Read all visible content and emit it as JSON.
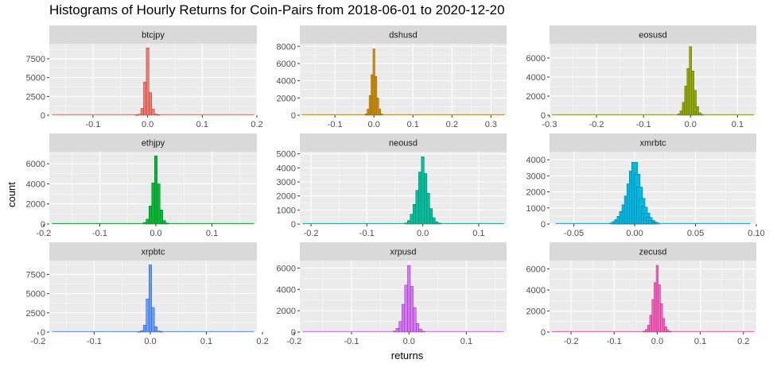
{
  "chart_data": {
    "type": "histogram",
    "title": "Histograms of Hourly Returns for Coin-Pairs from 2018-06-01 to 2020-12-20",
    "xlabel": "returns",
    "ylabel": "count",
    "grid": true,
    "facets": [
      {
        "name": "btcjpy",
        "color": "#F8766D",
        "xlim": [
          -0.18,
          0.2
        ],
        "xticks": [
          -0.1,
          0.0,
          0.1,
          0.2
        ],
        "xtick_labels": [
          "-0.1",
          "0.0",
          "0.1",
          "0.2"
        ],
        "ylim": [
          0,
          9500
        ],
        "yticks": [
          0,
          2500,
          5000,
          7500
        ],
        "ytick_labels": [
          "0",
          "2500",
          "5000",
          "7500"
        ],
        "bins": [
          [
            -0.02,
            20
          ],
          [
            -0.015,
            120
          ],
          [
            -0.01,
            900
          ],
          [
            -0.005,
            4400
          ],
          [
            0.0,
            8950
          ],
          [
            0.005,
            3000
          ],
          [
            0.01,
            800
          ],
          [
            0.015,
            150
          ],
          [
            0.02,
            40
          ]
        ]
      },
      {
        "name": "dshusd",
        "color": "#D39200",
        "xlim": [
          -0.19,
          0.34
        ],
        "xticks": [
          -0.1,
          0.0,
          0.1,
          0.2,
          0.3
        ],
        "xtick_labels": [
          "-0.1",
          "0.0",
          "0.1",
          "0.2",
          "0.3"
        ],
        "ylim": [
          0,
          8300
        ],
        "yticks": [
          0,
          2000,
          4000,
          6000,
          8000
        ],
        "ytick_labels": [
          "0",
          "2000",
          "4000",
          "6000",
          "8000"
        ],
        "bins": [
          [
            -0.02,
            150
          ],
          [
            -0.015,
            700
          ],
          [
            -0.01,
            2300
          ],
          [
            -0.005,
            4700
          ],
          [
            0.0,
            7700
          ],
          [
            0.005,
            4500
          ],
          [
            0.01,
            2000
          ],
          [
            0.015,
            700
          ],
          [
            0.02,
            150
          ]
        ]
      },
      {
        "name": "eosusd",
        "color": "#93AA00",
        "xlim": [
          -0.3,
          0.14
        ],
        "xticks": [
          -0.3,
          -0.2,
          -0.1,
          0.0,
          0.1
        ],
        "xtick_labels": [
          "-0.3",
          "-0.2",
          "-0.1",
          "0.0",
          "0.1"
        ],
        "ylim": [
          0,
          7500
        ],
        "yticks": [
          0,
          2000,
          4000,
          6000
        ],
        "ytick_labels": [
          "0",
          "2000",
          "4000",
          "6000"
        ],
        "bins": [
          [
            -0.025,
            120
          ],
          [
            -0.02,
            450
          ],
          [
            -0.015,
            1350
          ],
          [
            -0.01,
            3050
          ],
          [
            -0.005,
            4900
          ],
          [
            0.0,
            7200
          ],
          [
            0.005,
            4650
          ],
          [
            0.01,
            2600
          ],
          [
            0.015,
            900
          ],
          [
            0.02,
            250
          ],
          [
            0.025,
            80
          ]
        ]
      },
      {
        "name": "ethjpy",
        "color": "#00BA38",
        "xlim": [
          -0.19,
          0.18
        ],
        "xticks": [
          -0.2,
          -0.1,
          0.0,
          0.1
        ],
        "xtick_labels": [
          "-0.2",
          "-0.1",
          "0.0",
          "0.1"
        ],
        "ylim": [
          0,
          7200
        ],
        "yticks": [
          0,
          2000,
          4000,
          6000
        ],
        "ytick_labels": [
          "0",
          "2000",
          "4000",
          "6000"
        ],
        "bins": [
          [
            -0.02,
            150
          ],
          [
            -0.015,
            500
          ],
          [
            -0.01,
            1800
          ],
          [
            -0.005,
            4100
          ],
          [
            0.0,
            6800
          ],
          [
            0.005,
            4000
          ],
          [
            0.01,
            1400
          ],
          [
            0.015,
            350
          ],
          [
            0.02,
            100
          ]
        ]
      },
      {
        "name": "neousd",
        "color": "#00C19F",
        "xlim": [
          -0.22,
          0.15
        ],
        "xticks": [
          -0.2,
          -0.1,
          0.0,
          0.1
        ],
        "xtick_labels": [
          "-0.2",
          "-0.1",
          "0.0",
          "0.1"
        ],
        "ylim": [
          0,
          5150
        ],
        "yticks": [
          0,
          1000,
          2000,
          3000,
          4000,
          5000
        ],
        "ytick_labels": [
          "0",
          "1000",
          "2000",
          "3000",
          "4000",
          "5000"
        ],
        "bins": [
          [
            -0.03,
            80
          ],
          [
            -0.025,
            250
          ],
          [
            -0.02,
            700
          ],
          [
            -0.015,
            1400
          ],
          [
            -0.01,
            2400
          ],
          [
            -0.005,
            3700
          ],
          [
            0.0,
            4800
          ],
          [
            0.005,
            3600
          ],
          [
            0.01,
            2200
          ],
          [
            0.015,
            1100
          ],
          [
            0.02,
            450
          ],
          [
            0.025,
            150
          ],
          [
            0.03,
            60
          ]
        ]
      },
      {
        "name": "xmrbtc",
        "color": "#00B9E3",
        "xlim": [
          -0.07,
          0.1
        ],
        "xticks": [
          -0.05,
          0.0,
          0.05,
          0.1
        ],
        "xtick_labels": [
          "-0.05",
          "0.00",
          "0.05",
          "0.10"
        ],
        "ylim": [
          0,
          4500
        ],
        "yticks": [
          0,
          1000,
          2000,
          3000,
          4000
        ],
        "ytick_labels": [
          "0",
          "1000",
          "2000",
          "3000",
          "4000"
        ],
        "bins": [
          [
            -0.018,
            60
          ],
          [
            -0.016,
            150
          ],
          [
            -0.014,
            280
          ],
          [
            -0.012,
            480
          ],
          [
            -0.01,
            780
          ],
          [
            -0.008,
            1200
          ],
          [
            -0.006,
            1750
          ],
          [
            -0.004,
            2500
          ],
          [
            -0.002,
            3300
          ],
          [
            0.0,
            3850
          ],
          [
            0.002,
            3100
          ],
          [
            0.004,
            2300
          ],
          [
            0.006,
            1600
          ],
          [
            0.008,
            1050
          ],
          [
            0.01,
            680
          ],
          [
            0.012,
            400
          ],
          [
            0.014,
            230
          ],
          [
            0.016,
            120
          ],
          [
            0.018,
            60
          ]
        ]
      },
      {
        "name": "xrpbtc",
        "color": "#619CFF",
        "xlim": [
          -0.18,
          0.19
        ],
        "xticks": [
          -0.2,
          -0.1,
          0.0,
          0.1,
          0.2
        ],
        "xtick_labels": [
          "-0.2",
          "-0.1",
          "0.0",
          "0.1",
          "0.2"
        ],
        "ylim": [
          0,
          9300
        ],
        "yticks": [
          0,
          2500,
          5000,
          7500
        ],
        "ytick_labels": [
          "0",
          "2500",
          "5000",
          "7500"
        ],
        "bins": [
          [
            -0.02,
            30
          ],
          [
            -0.015,
            180
          ],
          [
            -0.01,
            900
          ],
          [
            -0.005,
            4300
          ],
          [
            0.0,
            8750
          ],
          [
            0.005,
            3200
          ],
          [
            0.01,
            700
          ],
          [
            0.015,
            150
          ],
          [
            0.02,
            40
          ]
        ]
      },
      {
        "name": "xrpusd",
        "color": "#DB72FB",
        "xlim": [
          -0.19,
          0.17
        ],
        "xticks": [
          -0.2,
          -0.1,
          0.0,
          0.1
        ],
        "xtick_labels": [
          "-0.2",
          "-0.1",
          "0.0",
          "0.1"
        ],
        "ylim": [
          0,
          6700
        ],
        "yticks": [
          0,
          2000,
          4000,
          6000
        ],
        "ytick_labels": [
          "0",
          "2000",
          "4000",
          "6000"
        ],
        "bins": [
          [
            -0.025,
            100
          ],
          [
            -0.02,
            350
          ],
          [
            -0.015,
            1000
          ],
          [
            -0.01,
            2600
          ],
          [
            -0.005,
            4400
          ],
          [
            0.0,
            6250
          ],
          [
            0.005,
            4300
          ],
          [
            0.01,
            2300
          ],
          [
            0.015,
            800
          ],
          [
            0.02,
            280
          ],
          [
            0.025,
            80
          ]
        ]
      },
      {
        "name": "zecusd",
        "color": "#FF61C3",
        "xlim": [
          -0.25,
          0.23
        ],
        "xticks": [
          -0.2,
          -0.1,
          0.0,
          0.1,
          0.2
        ],
        "xtick_labels": [
          "-0.2",
          "-0.1",
          "0.0",
          "0.1",
          "0.2"
        ],
        "ylim": [
          0,
          6800
        ],
        "yticks": [
          0,
          2000,
          4000,
          6000
        ],
        "ytick_labels": [
          "0",
          "2000",
          "4000",
          "6000"
        ],
        "bins": [
          [
            -0.03,
            90
          ],
          [
            -0.025,
            250
          ],
          [
            -0.02,
            650
          ],
          [
            -0.015,
            1600
          ],
          [
            -0.01,
            3100
          ],
          [
            -0.005,
            4700
          ],
          [
            0.0,
            6350
          ],
          [
            0.005,
            4500
          ],
          [
            0.01,
            2700
          ],
          [
            0.015,
            1300
          ],
          [
            0.02,
            500
          ],
          [
            0.025,
            180
          ],
          [
            0.03,
            70
          ]
        ]
      }
    ]
  }
}
